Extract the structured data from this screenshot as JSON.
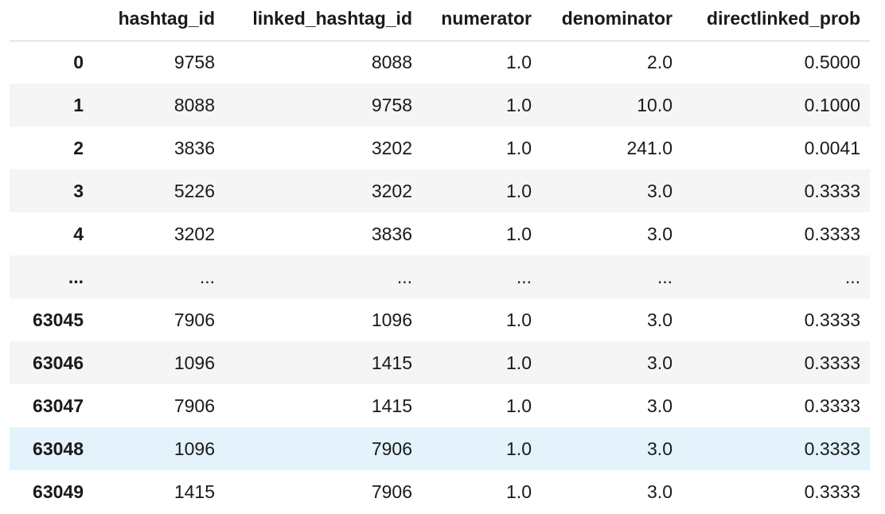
{
  "table": {
    "columns": [
      "",
      "hashtag_id",
      "linked_hashtag_id",
      "numerator",
      "denominator",
      "directlinked_prob"
    ],
    "rows": [
      {
        "index": "0",
        "cells": [
          "9758",
          "8088",
          "1.0",
          "2.0",
          "0.5000"
        ]
      },
      {
        "index": "1",
        "cells": [
          "8088",
          "9758",
          "1.0",
          "10.0",
          "0.1000"
        ]
      },
      {
        "index": "2",
        "cells": [
          "3836",
          "3202",
          "1.0",
          "241.0",
          "0.0041"
        ]
      },
      {
        "index": "3",
        "cells": [
          "5226",
          "3202",
          "1.0",
          "3.0",
          "0.3333"
        ]
      },
      {
        "index": "4",
        "cells": [
          "3202",
          "3836",
          "1.0",
          "3.0",
          "0.3333"
        ]
      },
      {
        "index": "...",
        "cells": [
          "...",
          "...",
          "...",
          "...",
          "..."
        ]
      },
      {
        "index": "63045",
        "cells": [
          "7906",
          "1096",
          "1.0",
          "3.0",
          "0.3333"
        ]
      },
      {
        "index": "63046",
        "cells": [
          "1096",
          "1415",
          "1.0",
          "3.0",
          "0.3333"
        ]
      },
      {
        "index": "63047",
        "cells": [
          "7906",
          "1415",
          "1.0",
          "3.0",
          "0.3333"
        ]
      },
      {
        "index": "63048",
        "cells": [
          "1096",
          "7906",
          "1.0",
          "3.0",
          "0.3333"
        ]
      },
      {
        "index": "63049",
        "cells": [
          "1415",
          "7906",
          "1.0",
          "3.0",
          "0.3333"
        ]
      }
    ],
    "highlighted_row": "63048",
    "colors": {
      "stripe": "#f5f5f5",
      "hover_highlight": "#e3f2fb",
      "header_rule": "#cfcfcf",
      "text": "#1a1a1a"
    }
  }
}
